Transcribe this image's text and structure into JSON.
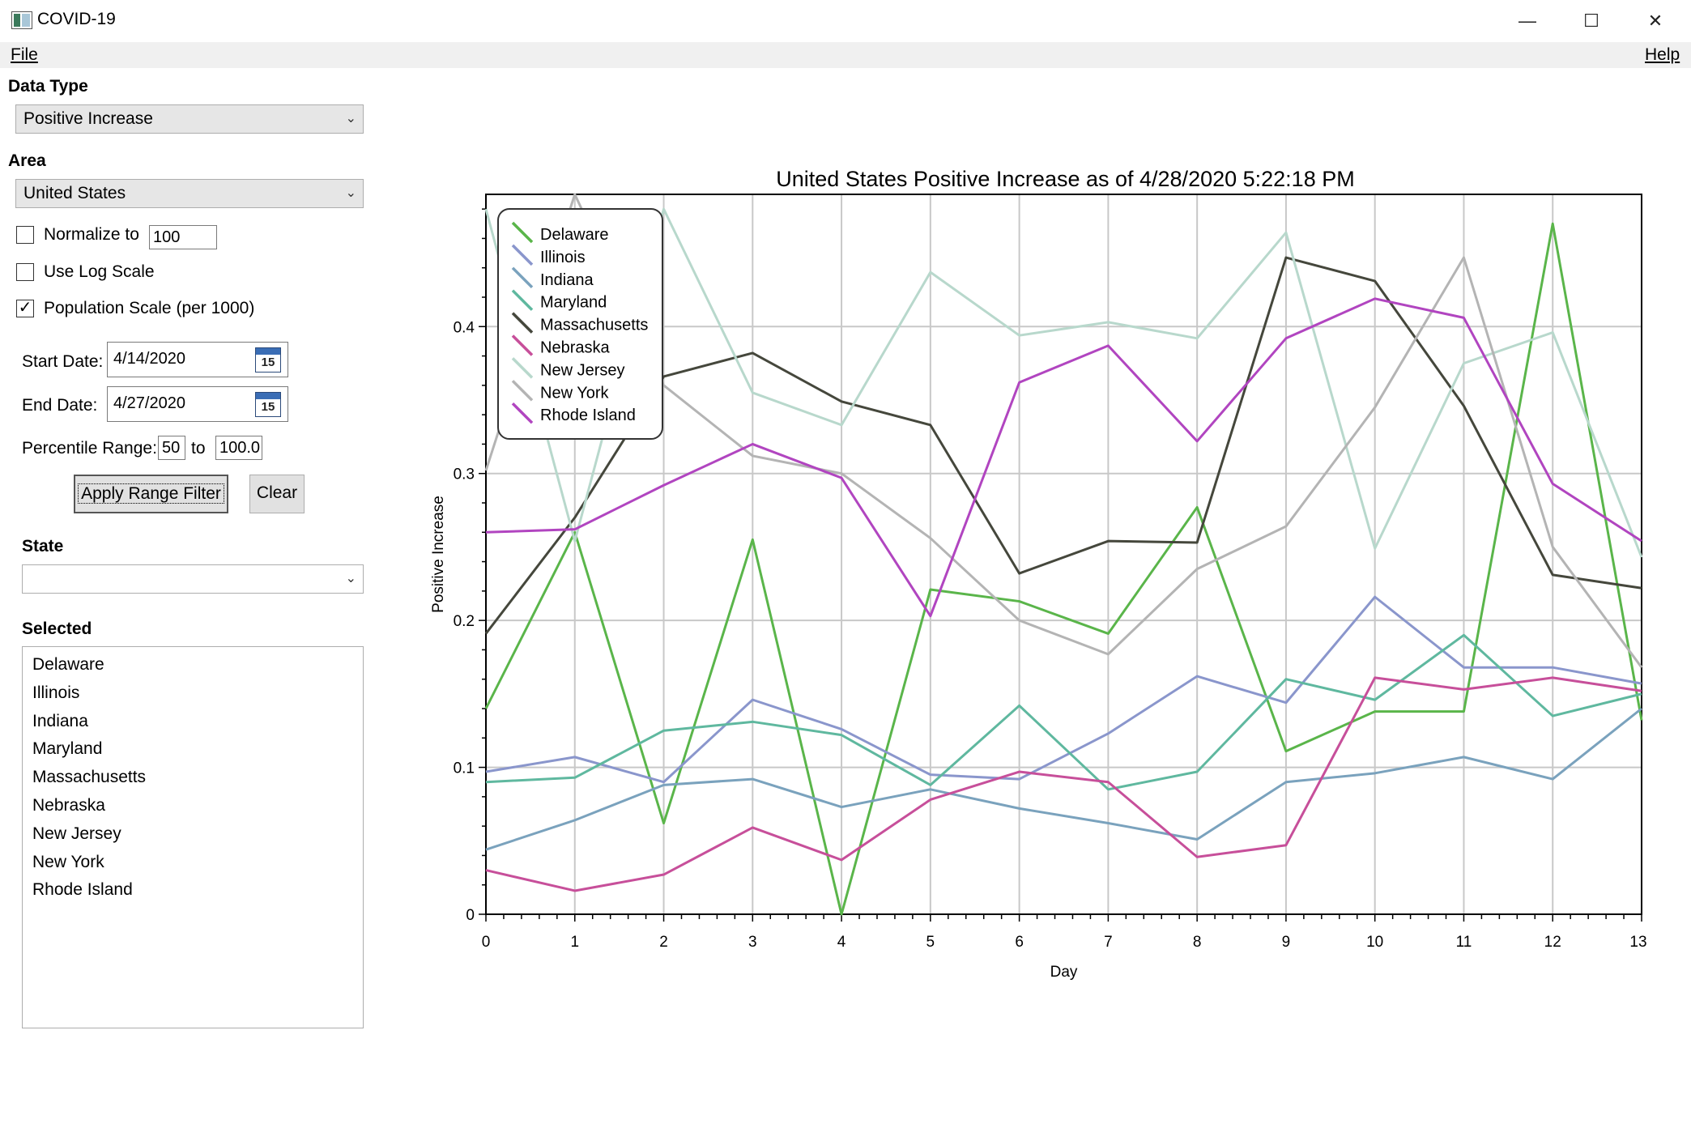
{
  "window": {
    "title": "COVID-19",
    "controls": {
      "minimize": "—",
      "maximize": "☐",
      "close": "✕"
    }
  },
  "menu": {
    "file": "File",
    "help": "Help"
  },
  "sidebar": {
    "data_type_label": "Data Type",
    "data_type_value": "Positive Increase",
    "area_label": "Area",
    "area_value": "United States",
    "normalize_label": "Normalize to",
    "normalize_checked": false,
    "normalize_value": "100",
    "log_scale_label": "Use Log Scale",
    "log_scale_checked": false,
    "population_scale_label": "Population Scale (per 1000)",
    "population_scale_checked": true,
    "start_date_label": "Start Date:",
    "start_date_value": "4/14/2020",
    "end_date_label": "End Date:",
    "end_date_value": "4/27/2020",
    "calendar_icon_text": "15",
    "percentile_label": "Percentile Range:",
    "percentile_from": "50",
    "percentile_to_label": "to",
    "percentile_to": "100.0",
    "apply_button": "Apply Range Filter",
    "clear_button": "Clear",
    "state_label": "State",
    "state_value": "",
    "selected_label": "Selected",
    "selected_items": [
      "Delaware",
      "Illinois",
      "Indiana",
      "Maryland",
      "Massachusetts",
      "Nebraska",
      "New Jersey",
      "New York",
      "Rhode Island"
    ]
  },
  "chart_data": {
    "type": "line",
    "title": "United States Positive Increase as of 4/28/2020 5:22:18 PM",
    "xlabel": "Day",
    "ylabel": "Positive Increase",
    "x": [
      0,
      1,
      2,
      3,
      4,
      5,
      6,
      7,
      8,
      9,
      10,
      11,
      12,
      13
    ],
    "xlim": [
      0,
      13
    ],
    "ylim": [
      0,
      0.49
    ],
    "yticks": [
      0,
      0.1,
      0.2,
      0.3,
      0.4
    ],
    "ytick_labels": [
      "0",
      "0.1",
      "0.2",
      "0.3",
      "0.4"
    ],
    "xtick_labels": [
      "0",
      "1",
      "2",
      "3",
      "4",
      "5",
      "6",
      "7",
      "8",
      "9",
      "10",
      "11",
      "12",
      "13"
    ],
    "grid": true,
    "legend": "top-left",
    "series": [
      {
        "name": "Delaware",
        "color": "#5ab54a",
        "values": [
          0.14,
          0.26,
          0.062,
          0.255,
          0.0,
          0.221,
          0.213,
          0.191,
          0.277,
          0.111,
          0.138,
          0.138,
          0.47,
          0.132
        ]
      },
      {
        "name": "Illinois",
        "color": "#8a96cc",
        "values": [
          0.097,
          0.107,
          0.09,
          0.146,
          0.126,
          0.095,
          0.092,
          0.123,
          0.162,
          0.144,
          0.216,
          0.168,
          0.168,
          0.157
        ]
      },
      {
        "name": "Indiana",
        "color": "#7aa2bd",
        "values": [
          0.044,
          0.064,
          0.088,
          0.092,
          0.073,
          0.085,
          0.072,
          0.062,
          0.051,
          0.09,
          0.096,
          0.107,
          0.092,
          0.14
        ]
      },
      {
        "name": "Maryland",
        "color": "#5fb89f",
        "values": [
          0.09,
          0.093,
          0.125,
          0.131,
          0.122,
          0.088,
          0.142,
          0.085,
          0.097,
          0.16,
          0.146,
          0.19,
          0.135,
          0.15
        ]
      },
      {
        "name": "Massachusetts",
        "color": "#45473c",
        "values": [
          0.191,
          0.27,
          0.366,
          0.382,
          0.349,
          0.333,
          0.232,
          0.254,
          0.253,
          0.447,
          0.431,
          0.346,
          0.231,
          0.222
        ]
      },
      {
        "name": "Nebraska",
        "color": "#c74f9a",
        "values": [
          0.03,
          0.016,
          0.027,
          0.059,
          0.037,
          0.078,
          0.097,
          0.09,
          0.039,
          0.047,
          0.161,
          0.153,
          0.161,
          0.152
        ]
      },
      {
        "name": "New Jersey",
        "color": "#b8d8cc",
        "values": [
          0.48,
          0.254,
          0.48,
          0.355,
          0.333,
          0.437,
          0.394,
          0.403,
          0.392,
          0.464,
          0.249,
          0.375,
          0.396,
          0.243
        ]
      },
      {
        "name": "New York",
        "color": "#b4b4b4",
        "values": [
          0.302,
          0.49,
          0.36,
          0.312,
          0.3,
          0.256,
          0.2,
          0.177,
          0.235,
          0.264,
          0.345,
          0.447,
          0.25,
          0.168
        ]
      },
      {
        "name": "Rhode Island",
        "color": "#b145c0",
        "values": [
          0.26,
          0.262,
          0.292,
          0.32,
          0.297,
          0.203,
          0.362,
          0.387,
          0.322,
          0.392,
          0.419,
          0.406,
          0.293,
          0.254
        ]
      }
    ]
  }
}
